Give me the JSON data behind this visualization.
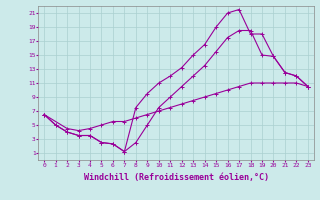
{
  "xlabel": "Windchill (Refroidissement éolien,°C)",
  "bg_color": "#cceaea",
  "line_color": "#990099",
  "grid_color": "#aad0d0",
  "spine_color": "#888888",
  "xlim": [
    -0.5,
    23.5
  ],
  "ylim": [
    0,
    22
  ],
  "xticks": [
    0,
    1,
    2,
    3,
    4,
    5,
    6,
    7,
    8,
    9,
    10,
    11,
    12,
    13,
    14,
    15,
    16,
    17,
    18,
    19,
    20,
    21,
    22,
    23
  ],
  "yticks": [
    1,
    3,
    5,
    7,
    9,
    11,
    13,
    15,
    17,
    19,
    21
  ],
  "line1_x": [
    0,
    1,
    2,
    3,
    4,
    5,
    6,
    7,
    8,
    9,
    10,
    11,
    12,
    13,
    14,
    15,
    16,
    17,
    18,
    19,
    20,
    21,
    22,
    23
  ],
  "line1_y": [
    6.5,
    5.0,
    4.0,
    3.5,
    3.5,
    2.5,
    2.3,
    1.2,
    7.5,
    9.5,
    11.0,
    12.0,
    13.2,
    15.0,
    16.5,
    19.0,
    21.0,
    21.5,
    18.0,
    18.0,
    14.8,
    12.5,
    12.0,
    10.5
  ],
  "line2_x": [
    0,
    1,
    2,
    3,
    4,
    5,
    6,
    7,
    8,
    9,
    10,
    11,
    12,
    13,
    14,
    15,
    16,
    17,
    18,
    19,
    20,
    21,
    22,
    23
  ],
  "line2_y": [
    6.5,
    5.0,
    4.0,
    3.5,
    3.5,
    2.5,
    2.3,
    1.2,
    2.5,
    5.0,
    7.5,
    9.0,
    10.5,
    12.0,
    13.5,
    15.5,
    17.5,
    18.5,
    18.5,
    15.0,
    14.8,
    12.5,
    12.0,
    10.5
  ],
  "line3_x": [
    0,
    2,
    3,
    4,
    5,
    6,
    7,
    8,
    9,
    10,
    11,
    12,
    13,
    14,
    15,
    16,
    17,
    18,
    19,
    20,
    21,
    22,
    23
  ],
  "line3_y": [
    6.5,
    4.5,
    4.2,
    4.5,
    5.0,
    5.5,
    5.5,
    6.0,
    6.5,
    7.0,
    7.5,
    8.0,
    8.5,
    9.0,
    9.5,
    10.0,
    10.5,
    11.0,
    11.0,
    11.0,
    11.0,
    11.0,
    10.5
  ],
  "marker": "+",
  "markersize": 3,
  "linewidth": 0.8,
  "tick_fontsize": 4.5,
  "xlabel_fontsize": 6.0
}
